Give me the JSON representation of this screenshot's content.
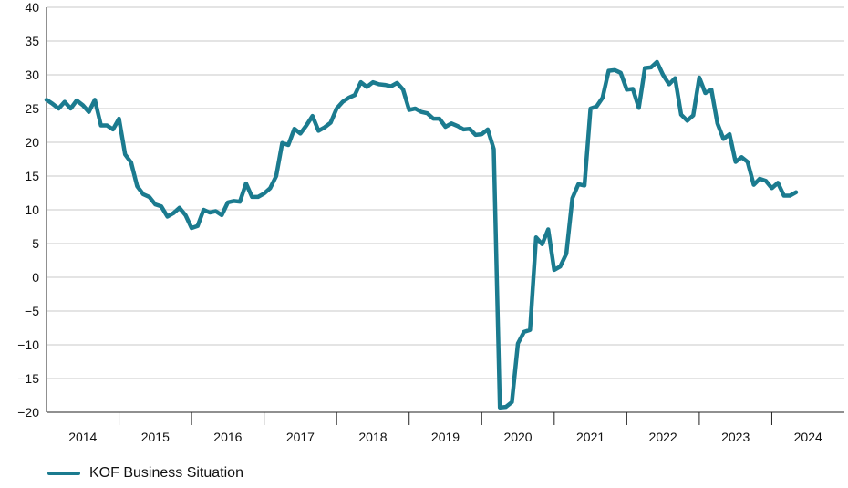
{
  "chart_data": {
    "type": "line",
    "title": "",
    "xlabel": "",
    "ylabel": "",
    "ylim": [
      -20,
      40
    ],
    "yticks": [
      40,
      35,
      30,
      25,
      20,
      15,
      10,
      5,
      0,
      -5,
      -10,
      -15,
      -20
    ],
    "xlim": [
      "2014-01",
      "2024-12"
    ],
    "xtick_labels": [
      "2014",
      "2015",
      "2016",
      "2017",
      "2018",
      "2019",
      "2020",
      "2021",
      "2022",
      "2023",
      "2024"
    ],
    "grid": true,
    "legend_position": "bottom-left",
    "colors": {
      "line": "#1b7b8f",
      "grid": "#c8c8c8",
      "axis": "#222222"
    },
    "series": [
      {
        "name": "KOF Business Situation",
        "x": [
          "2014-01",
          "2014-02",
          "2014-03",
          "2014-04",
          "2014-05",
          "2014-06",
          "2014-07",
          "2014-08",
          "2014-09",
          "2014-10",
          "2014-11",
          "2014-12",
          "2015-01",
          "2015-02",
          "2015-03",
          "2015-04",
          "2015-05",
          "2015-06",
          "2015-07",
          "2015-08",
          "2015-09",
          "2015-10",
          "2015-11",
          "2015-12",
          "2016-01",
          "2016-02",
          "2016-03",
          "2016-04",
          "2016-05",
          "2016-06",
          "2016-07",
          "2016-08",
          "2016-09",
          "2016-10",
          "2016-11",
          "2016-12",
          "2017-01",
          "2017-02",
          "2017-03",
          "2017-04",
          "2017-05",
          "2017-06",
          "2017-07",
          "2017-08",
          "2017-09",
          "2017-10",
          "2017-11",
          "2017-12",
          "2018-01",
          "2018-02",
          "2018-03",
          "2018-04",
          "2018-05",
          "2018-06",
          "2018-07",
          "2018-08",
          "2018-09",
          "2018-10",
          "2018-11",
          "2018-12",
          "2019-01",
          "2019-02",
          "2019-03",
          "2019-04",
          "2019-05",
          "2019-06",
          "2019-07",
          "2019-08",
          "2019-09",
          "2019-10",
          "2019-11",
          "2019-12",
          "2020-01",
          "2020-02",
          "2020-03",
          "2020-04",
          "2020-05",
          "2020-06",
          "2020-07",
          "2020-08",
          "2020-09",
          "2020-10",
          "2020-11",
          "2020-12",
          "2021-01",
          "2021-02",
          "2021-03",
          "2021-04",
          "2021-05",
          "2021-06",
          "2021-07",
          "2021-08",
          "2021-09",
          "2021-10",
          "2021-11",
          "2021-12",
          "2022-01",
          "2022-02",
          "2022-03",
          "2022-04",
          "2022-05",
          "2022-06",
          "2022-07",
          "2022-08",
          "2022-09",
          "2022-10",
          "2022-11",
          "2022-12",
          "2023-01",
          "2023-02",
          "2023-03",
          "2023-04",
          "2023-05",
          "2023-06",
          "2023-07",
          "2023-08",
          "2023-09",
          "2023-10",
          "2023-11",
          "2023-12",
          "2024-01",
          "2024-02",
          "2024-03",
          "2024-04",
          "2024-05"
        ],
        "values": [
          26.3,
          25.7,
          25.0,
          26.0,
          25.0,
          26.2,
          25.5,
          24.5,
          26.3,
          22.5,
          22.5,
          21.9,
          23.5,
          18.2,
          17.0,
          13.5,
          12.3,
          11.9,
          10.8,
          10.5,
          9.0,
          9.5,
          10.3,
          9.2,
          7.3,
          7.6,
          10.0,
          9.6,
          9.8,
          9.2,
          11.1,
          11.3,
          11.2,
          13.9,
          11.9,
          11.9,
          12.4,
          13.2,
          15.0,
          19.9,
          19.6,
          22.0,
          21.3,
          22.5,
          23.9,
          21.7,
          22.2,
          22.9,
          25.0,
          26.0,
          26.6,
          27.0,
          28.9,
          28.2,
          28.9,
          28.6,
          28.5,
          28.3,
          28.8,
          27.8,
          24.8,
          25.0,
          24.5,
          24.3,
          23.5,
          23.5,
          22.3,
          22.8,
          22.4,
          21.9,
          22.0,
          21.1,
          21.2,
          21.9,
          19.0,
          -19.3,
          -19.2,
          -18.5,
          -9.8,
          -8.1,
          -7.8,
          5.9,
          4.9,
          7.1,
          1.1,
          1.6,
          3.5,
          11.7,
          13.8,
          13.6,
          25.0,
          25.3,
          26.6,
          30.6,
          30.7,
          30.3,
          27.8,
          27.9,
          25.1,
          31.0,
          31.1,
          31.9,
          30.0,
          28.6,
          29.5,
          24.1,
          23.2,
          24.0,
          29.6,
          27.3,
          27.8,
          22.8,
          20.5,
          21.2,
          17.1,
          17.8,
          17.1,
          13.7,
          14.6,
          14.3,
          13.2,
          14.0,
          12.1,
          12.1,
          12.6
        ]
      }
    ]
  }
}
